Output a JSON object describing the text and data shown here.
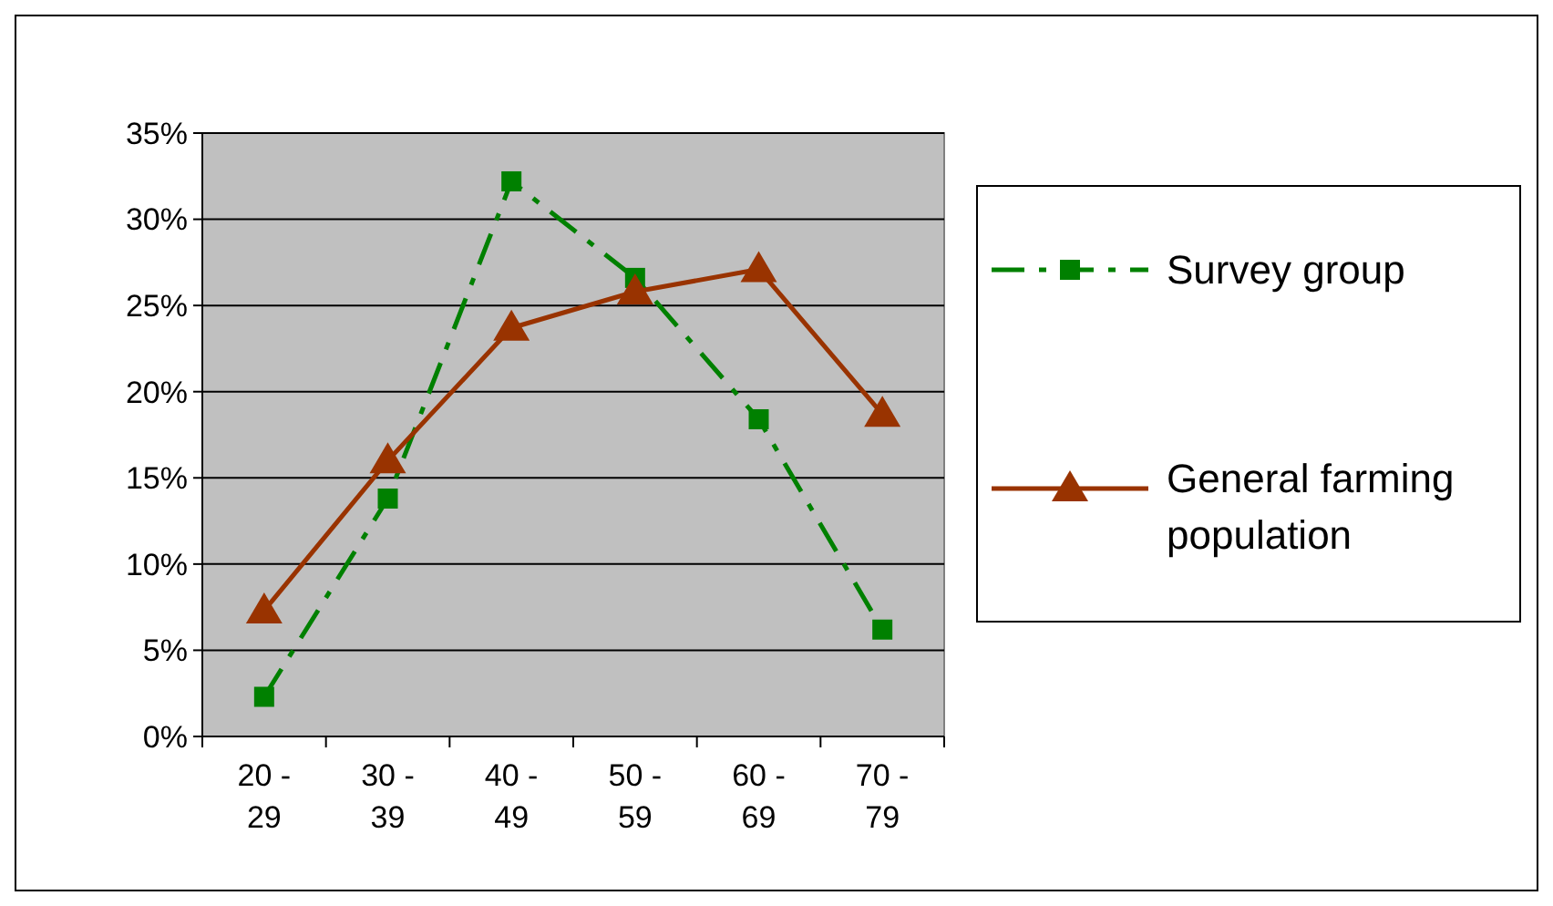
{
  "chart_data": {
    "type": "line",
    "categories": [
      "20 - 29",
      "30 - 39",
      "40 - 49",
      "50 - 59",
      "60 - 69",
      "70 - 79"
    ],
    "series": [
      {
        "name": "Survey group",
        "color": "#008000",
        "marker": "square",
        "line_style": "dashed",
        "values": [
          2.3,
          13.8,
          32.2,
          26.6,
          18.4,
          6.2
        ]
      },
      {
        "name": "General farming population",
        "color": "#993300",
        "marker": "triangle",
        "line_style": "solid",
        "values": [
          7.3,
          16.0,
          23.7,
          25.8,
          27.1,
          18.7
        ]
      }
    ],
    "ylim": [
      0,
      35
    ],
    "yticks": [
      {
        "value": 0,
        "label": "0%"
      },
      {
        "value": 5,
        "label": "5%"
      },
      {
        "value": 10,
        "label": "10%"
      },
      {
        "value": 15,
        "label": "15%"
      },
      {
        "value": 20,
        "label": "20%"
      },
      {
        "value": 25,
        "label": "25%"
      },
      {
        "value": 30,
        "label": "30%"
      },
      {
        "value": 35,
        "label": "35%"
      }
    ],
    "grid": "y",
    "legend": "right"
  }
}
